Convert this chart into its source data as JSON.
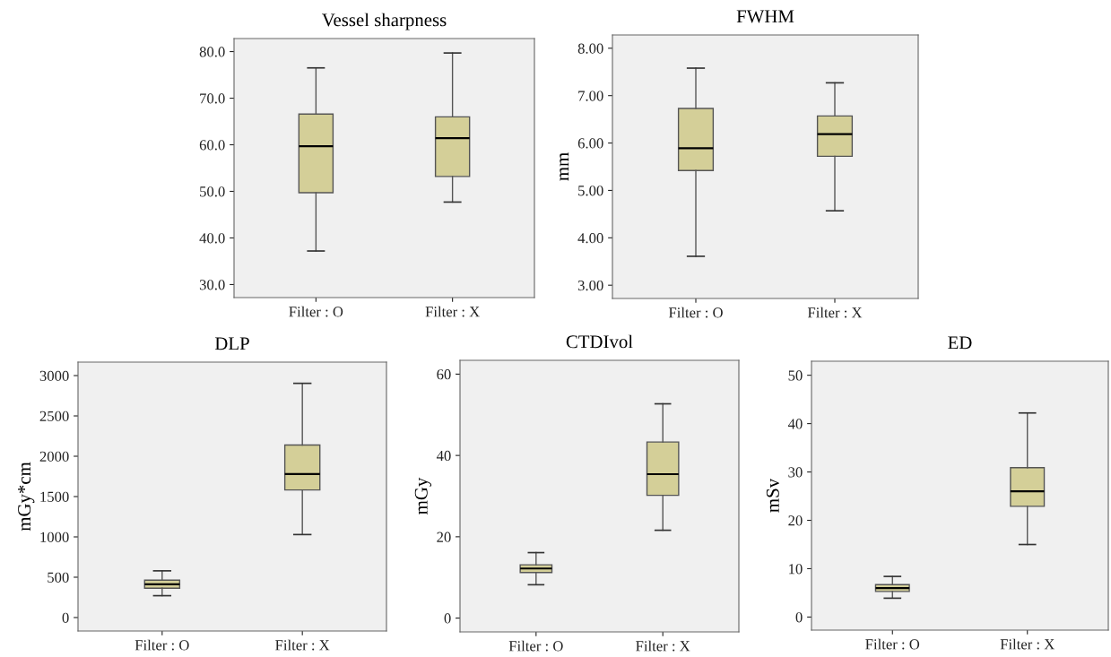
{
  "chart_data": [
    {
      "type": "box",
      "title": "Vessel sharpness",
      "categories": [
        "Filter : O",
        "Filter : X"
      ],
      "color": "#d4cf98",
      "ylim": [
        27.2,
        82.8
      ],
      "yticks": [
        {
          "value": 30,
          "label": "30.0"
        },
        {
          "value": 40,
          "label": "40.0"
        },
        {
          "value": 50,
          "label": "50.0"
        },
        {
          "value": 60,
          "label": "60.0"
        },
        {
          "value": 70,
          "label": "70.0"
        },
        {
          "value": 80,
          "label": "80.0"
        }
      ],
      "boxes": [
        {
          "low": 37.2,
          "q1": 49.7,
          "median": 59.7,
          "q3": 66.6,
          "high": 76.5
        },
        {
          "low": 47.7,
          "q1": 53.2,
          "median": 61.4,
          "q3": 66.0,
          "high": 79.7
        }
      ]
    },
    {
      "type": "box",
      "title": "FWHM",
      "ylabel": "mm",
      "categories": [
        "Filter : O",
        "Filter : X"
      ],
      "color": "#d4cf98",
      "ylim": [
        2.72,
        8.28
      ],
      "yticks": [
        {
          "value": 3,
          "label": "3.00"
        },
        {
          "value": 4,
          "label": "4.00"
        },
        {
          "value": 5,
          "label": "5.00"
        },
        {
          "value": 6,
          "label": "6.00"
        },
        {
          "value": 7,
          "label": "7.00"
        },
        {
          "value": 8,
          "label": "8.00"
        }
      ],
      "boxes": [
        {
          "low": 3.61,
          "q1": 5.42,
          "median": 5.89,
          "q3": 6.73,
          "high": 7.58
        },
        {
          "low": 4.57,
          "q1": 5.72,
          "median": 6.19,
          "q3": 6.57,
          "high": 7.27
        }
      ]
    },
    {
      "type": "box",
      "title": "DLP",
      "ylabel": "mGy*cm",
      "categories": [
        "Filter : O",
        "Filter : X"
      ],
      "color": "#d4cf98",
      "ylim": [
        -167,
        3167
      ],
      "yticks": [
        0,
        500,
        1000,
        1500,
        2000,
        2500,
        3000
      ],
      "boxes": [
        {
          "low": 271,
          "q1": 364,
          "median": 412,
          "q3": 464,
          "high": 579
        },
        {
          "low": 1029,
          "q1": 1582,
          "median": 1779,
          "q3": 2139,
          "high": 2904
        }
      ]
    },
    {
      "type": "box",
      "title": "CTDIvol",
      "ylabel": "mGy",
      "categories": [
        "Filter : O",
        "Filter : X"
      ],
      "color": "#d4cf98",
      "ylim": [
        -3.4,
        63.4
      ],
      "yticks": [
        0,
        20,
        40,
        60
      ],
      "boxes": [
        {
          "low": 8.2,
          "q1": 11.2,
          "median": 12.2,
          "q3": 13.1,
          "high": 16.1
        },
        {
          "low": 21.6,
          "q1": 30.2,
          "median": 35.4,
          "q3": 43.3,
          "high": 52.7
        }
      ]
    },
    {
      "type": "box",
      "title": "ED",
      "ylabel": "mSv",
      "categories": [
        "Filter : O",
        "Filter : X"
      ],
      "color": "#d4cf98",
      "ylim": [
        -2.7,
        52.9
      ],
      "yticks": [
        0,
        10,
        20,
        30,
        40,
        50
      ],
      "boxes": [
        {
          "low": 3.9,
          "q1": 5.3,
          "median": 6.0,
          "q3": 6.7,
          "high": 8.4
        },
        {
          "low": 15.0,
          "q1": 22.9,
          "median": 26.0,
          "q3": 30.9,
          "high": 42.2
        }
      ]
    }
  ]
}
